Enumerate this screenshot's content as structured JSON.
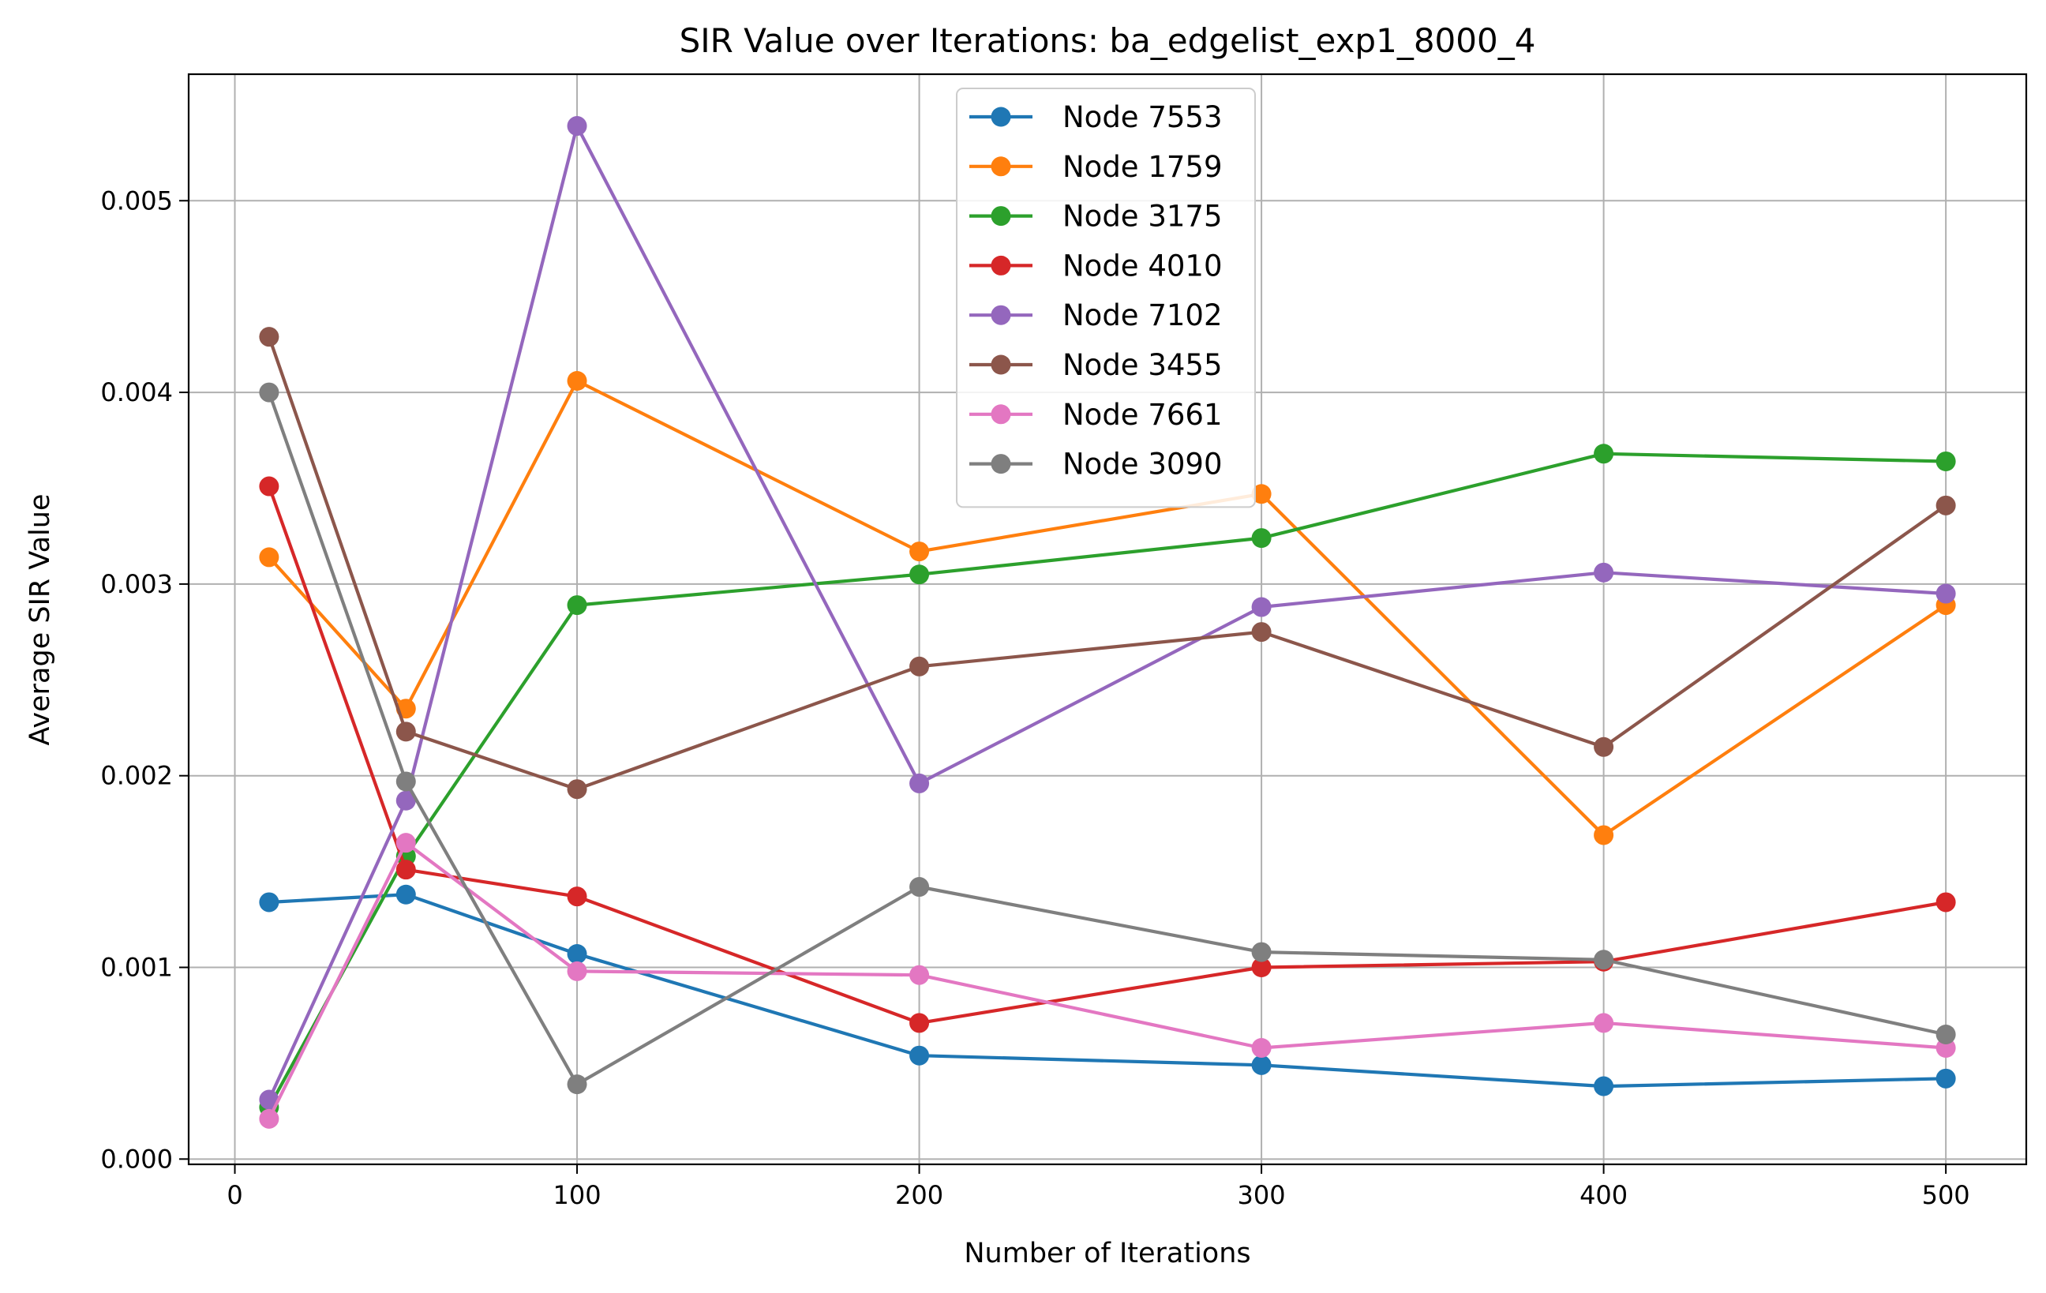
{
  "chart_data": {
    "type": "line",
    "title": "SIR Value over Iterations: ba_edgelist_exp1_8000_4",
    "xlabel": "Number of Iterations",
    "ylabel": "Average SIR Value",
    "x": [
      10,
      50,
      100,
      200,
      300,
      400,
      500
    ],
    "xlim": [
      -13.5,
      523.5
    ],
    "ylim": [
      -2.75e-05,
      0.00566
    ],
    "xticks": [
      0,
      100,
      200,
      300,
      400,
      500
    ],
    "xtick_labels": [
      "0",
      "100",
      "200",
      "300",
      "400",
      "500"
    ],
    "yticks": [
      0,
      0.001,
      0.002,
      0.003,
      0.004,
      0.005
    ],
    "ytick_labels": [
      "0.000",
      "0.001",
      "0.002",
      "0.003",
      "0.004",
      "0.005"
    ],
    "grid": true,
    "legend_position": "top-center",
    "series": [
      {
        "name": "Node 7553",
        "color": "#1f77b4",
        "values": [
          0.00134,
          0.00138,
          0.00107,
          0.00054,
          0.00049,
          0.00038,
          0.00042
        ]
      },
      {
        "name": "Node 1759",
        "color": "#ff7f0e",
        "values": [
          0.00314,
          0.00235,
          0.00406,
          0.00317,
          0.00347,
          0.00169,
          0.00289
        ]
      },
      {
        "name": "Node 3175",
        "color": "#2ca02c",
        "values": [
          0.00027,
          0.00158,
          0.00289,
          0.00305,
          0.00324,
          0.00368,
          0.00364
        ]
      },
      {
        "name": "Node 4010",
        "color": "#d62728",
        "values": [
          0.00351,
          0.00151,
          0.00137,
          0.00071,
          0.001,
          0.00103,
          0.00134
        ]
      },
      {
        "name": "Node 7102",
        "color": "#9467bd",
        "values": [
          0.00031,
          0.00187,
          0.00539,
          0.00196,
          0.00288,
          0.00306,
          0.00295
        ]
      },
      {
        "name": "Node 3455",
        "color": "#8c564b",
        "values": [
          0.00429,
          0.00223,
          0.00193,
          0.00257,
          0.00275,
          0.00215,
          0.00341
        ]
      },
      {
        "name": "Node 7661",
        "color": "#e377c2",
        "values": [
          0.00021,
          0.00165,
          0.00098,
          0.00096,
          0.00058,
          0.00071,
          0.00058
        ]
      },
      {
        "name": "Node 3090",
        "color": "#7f7f7f",
        "values": [
          0.004,
          0.00197,
          0.00039,
          0.00142,
          0.00108,
          0.00104,
          0.00065
        ]
      }
    ]
  }
}
